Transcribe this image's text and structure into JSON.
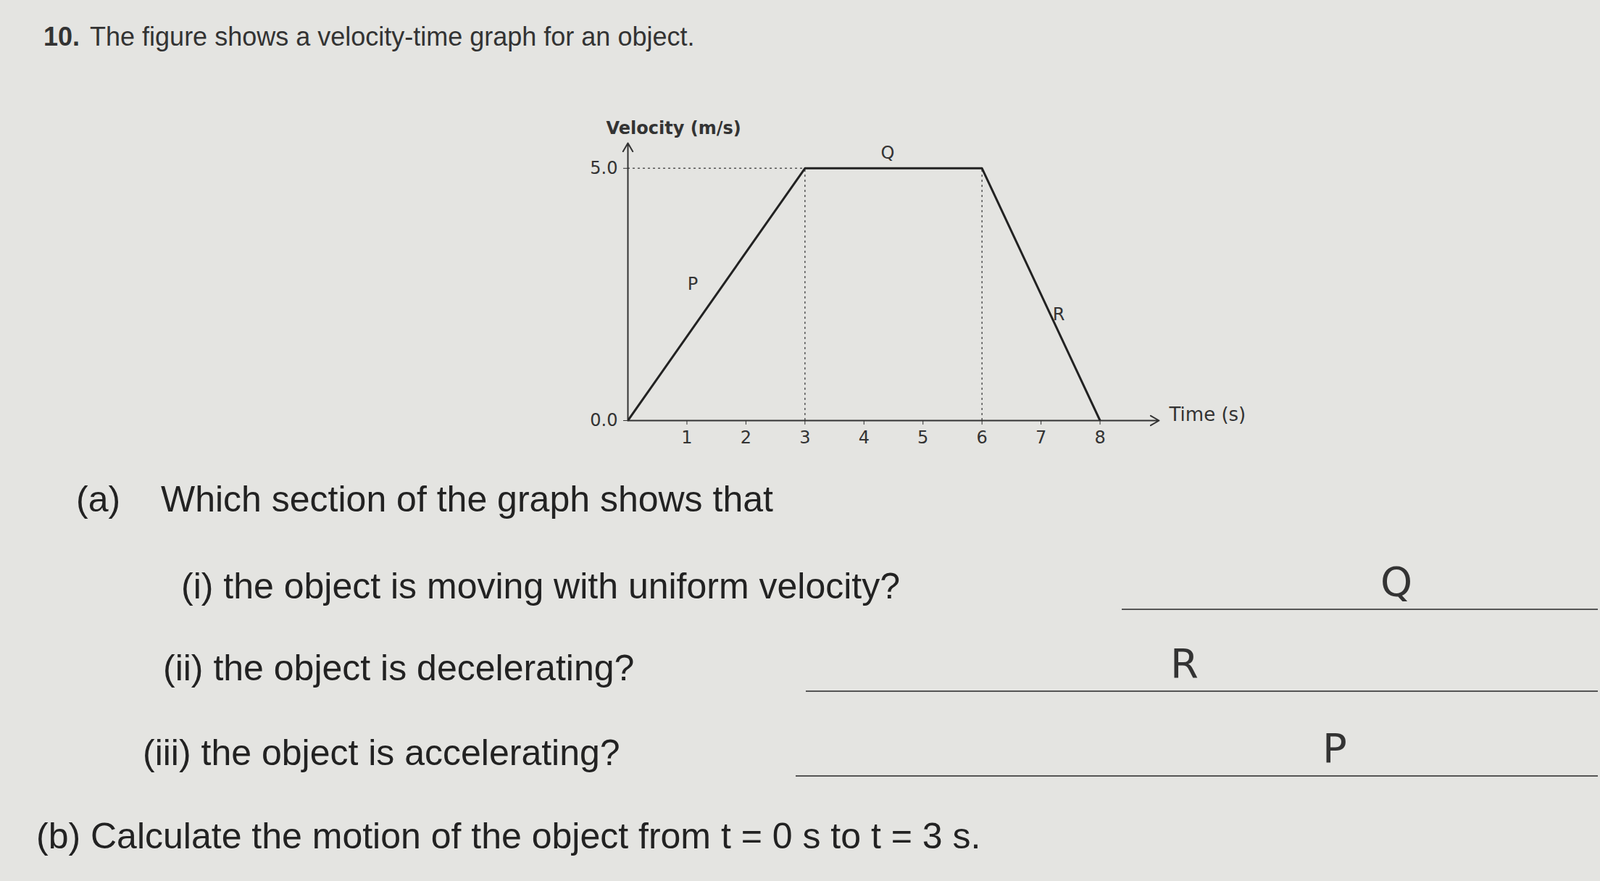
{
  "header": {
    "number": "10.",
    "text": "The figure shows a velocity-time graph for an object."
  },
  "chart_data": {
    "type": "line",
    "x": [
      0,
      3,
      6,
      8
    ],
    "values": [
      0,
      5,
      5,
      0
    ],
    "color": "#222222",
    "xlabel": "Time (s)",
    "ylabel": "Velocity (m/s)",
    "xlim": [
      0,
      9
    ],
    "ylim": [
      0,
      5.5
    ],
    "xticks": [
      1,
      2,
      3,
      4,
      5,
      6,
      7,
      8
    ],
    "yticks": [
      0,
      5
    ],
    "annotations": [
      {
        "text": "P",
        "x": 1.1,
        "y": 2.7
      },
      {
        "text": "Q",
        "x": 4.4,
        "y": 5.3
      },
      {
        "text": "R",
        "x": 7.3,
        "y": 2.1
      }
    ]
  },
  "questions": {
    "a": {
      "label": "(a)",
      "text": "Which section of the graph shows that",
      "items": [
        {
          "label": "(i)",
          "text": "the object is moving with uniform velocity?",
          "answer": "Q"
        },
        {
          "label": "(ii)",
          "text": "the object is decelerating?",
          "answer": "R"
        },
        {
          "label": "(iii)",
          "text": "the object is accelerating?",
          "answer": "P"
        }
      ]
    },
    "b": {
      "label": "(b)",
      "text": "Calculate the motion of the object from t = 0 s to t = 3 s."
    }
  }
}
